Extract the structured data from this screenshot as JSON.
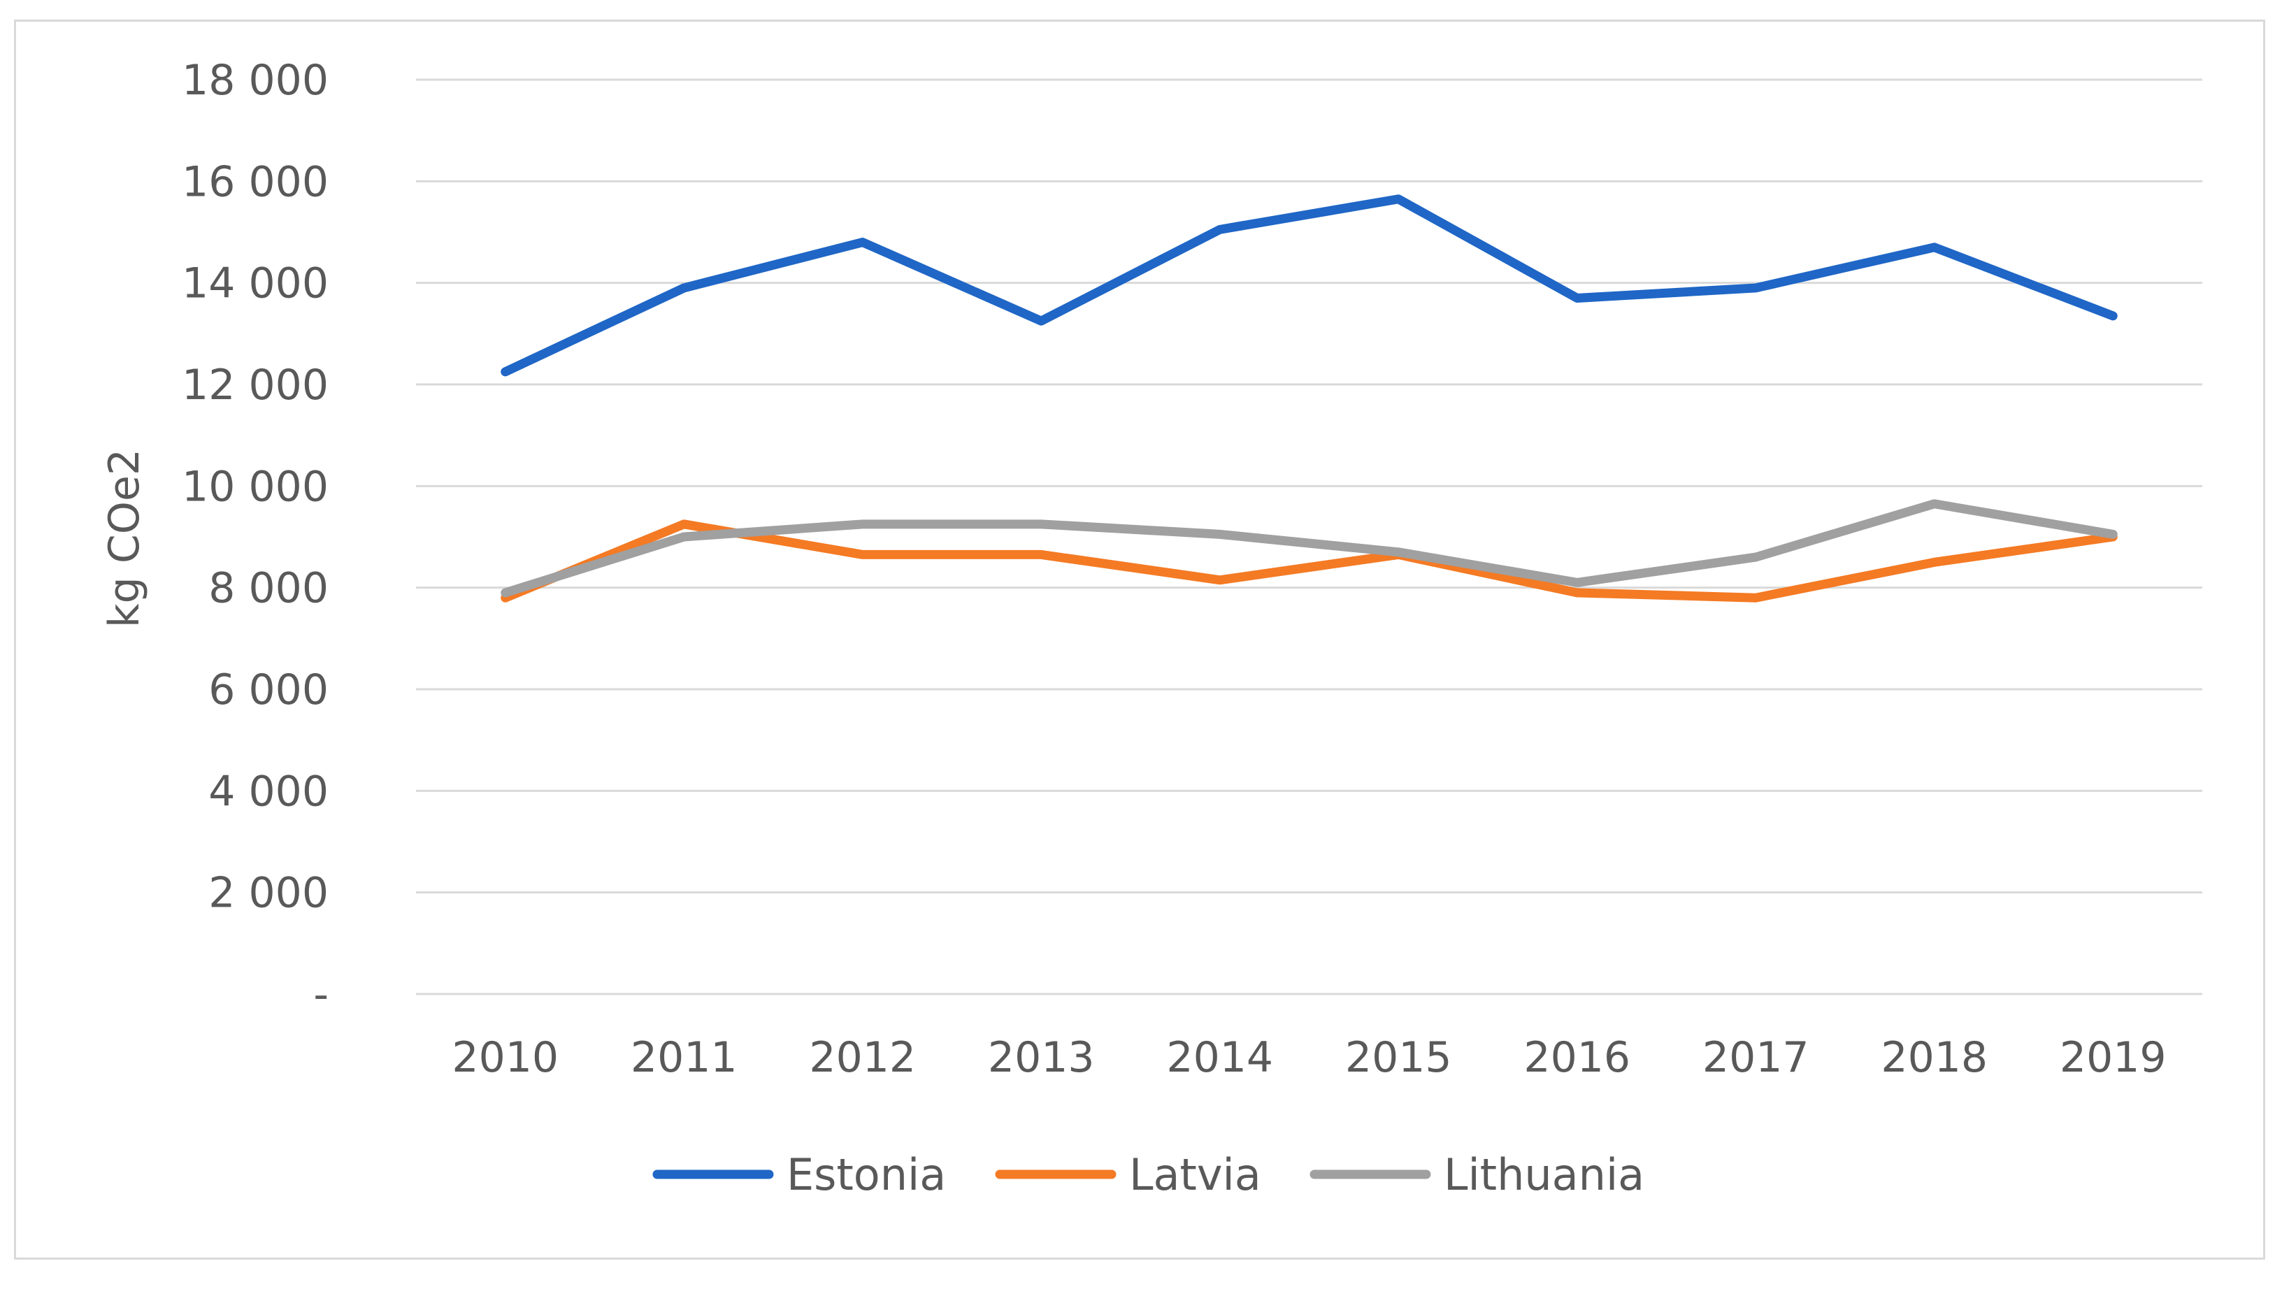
{
  "chart_data": {
    "type": "line",
    "title": "",
    "xlabel": "",
    "ylabel": "kg COe2",
    "ylim": [
      0,
      18000
    ],
    "y_ticks": [
      {
        "value": 0,
        "label": "-"
      },
      {
        "value": 2000,
        "label": "2 000"
      },
      {
        "value": 4000,
        "label": "4 000"
      },
      {
        "value": 6000,
        "label": "6 000"
      },
      {
        "value": 8000,
        "label": "8 000"
      },
      {
        "value": 10000,
        "label": "10 000"
      },
      {
        "value": 12000,
        "label": "12 000"
      },
      {
        "value": 14000,
        "label": "14 000"
      },
      {
        "value": 16000,
        "label": "16 000"
      },
      {
        "value": 18000,
        "label": "18 000"
      }
    ],
    "grid": true,
    "legend_position": "bottom",
    "categories": [
      "2010",
      "2011",
      "2012",
      "2013",
      "2014",
      "2015",
      "2016",
      "2017",
      "2018",
      "2019"
    ],
    "series": [
      {
        "name": "Estonia",
        "color": "#1f66c6",
        "values": [
          12250,
          13900,
          14800,
          13250,
          15050,
          15650,
          13700,
          13900,
          14700,
          13350
        ]
      },
      {
        "name": "Latvia",
        "color": "#f47a24",
        "values": [
          7800,
          9250,
          8650,
          8650,
          8150,
          8650,
          7900,
          7800,
          8500,
          9000
        ]
      },
      {
        "name": "Lithuania",
        "color": "#a0a0a0",
        "values": [
          7900,
          9000,
          9250,
          9250,
          9050,
          8700,
          8100,
          8600,
          9650,
          9050
        ]
      }
    ]
  }
}
